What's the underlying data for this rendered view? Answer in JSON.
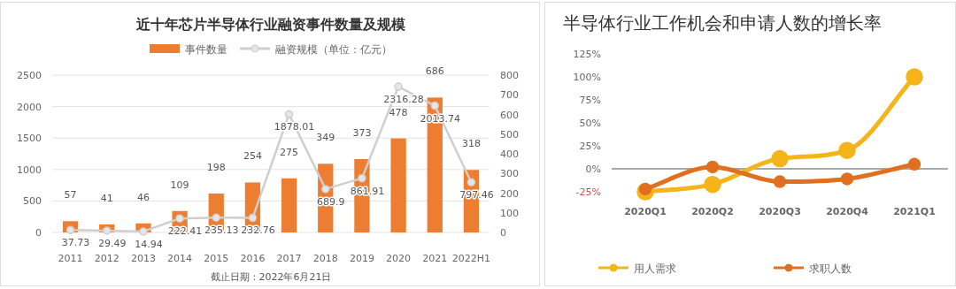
{
  "chart_data": [
    {
      "type": "bar",
      "title": "近十年芯片半导体行业融资事件数量及规模",
      "categories": [
        "2011",
        "2012",
        "2013",
        "2014",
        "2015",
        "2016",
        "2017",
        "2018",
        "2019",
        "2020",
        "2021",
        "2022H1"
      ],
      "series": [
        {
          "name": "事件数量",
          "axis": "y2",
          "color": "#ed7d31",
          "values": [
            57,
            41,
            46,
            109,
            198,
            254,
            275,
            349,
            373,
            478,
            686,
            318
          ]
        },
        {
          "name": "融资规模（单位：亿元）",
          "type": "line",
          "axis": "y",
          "color": "#cfcfcf",
          "marker": "circle",
          "values": [
            37.73,
            29.49,
            14.94,
            222.41,
            235.13,
            232.76,
            1878.01,
            689.9,
            861.91,
            2316.28,
            2013.74,
            797.46
          ]
        }
      ],
      "ylim": [
        0,
        2500
      ],
      "yticks": [
        0,
        500,
        1000,
        1500,
        2000,
        2500
      ],
      "y2lim": [
        0,
        800
      ],
      "y2ticks": [
        0,
        100,
        200,
        300,
        400,
        500,
        600,
        700,
        800
      ],
      "data_labels": true,
      "grid": "y",
      "legend": "top",
      "annotations": [
        "截止日期：2022年6月21日"
      ]
    },
    {
      "type": "line",
      "title": "半导体行业工作机会和申请人数的增长率",
      "categories": [
        "2020Q1",
        "2020Q2",
        "2020Q3",
        "2020Q4",
        "2021Q1"
      ],
      "series": [
        {
          "name": "用人需求",
          "color": "#f4b41a",
          "values": [
            -25,
            -17,
            11,
            20,
            100
          ]
        },
        {
          "name": "求职人数",
          "color": "#e07020",
          "values": [
            -22,
            2,
            -14,
            -11,
            5
          ]
        }
      ],
      "ylim": [
        -25,
        125
      ],
      "yticks": [
        {
          "value": -25,
          "label": "-25%"
        },
        {
          "value": 0,
          "label": "0%"
        },
        {
          "value": 25,
          "label": "25%"
        },
        {
          "value": 50,
          "label": "50%"
        },
        {
          "value": 75,
          "label": "75%"
        },
        {
          "value": 100,
          "label": "100%"
        },
        {
          "value": 125,
          "label": "125%"
        }
      ],
      "ref_lines": [
        {
          "axis": "y",
          "value": 0,
          "color": "#555555"
        }
      ],
      "marker": "circle",
      "legend": "bottom",
      "grid": false
    }
  ]
}
